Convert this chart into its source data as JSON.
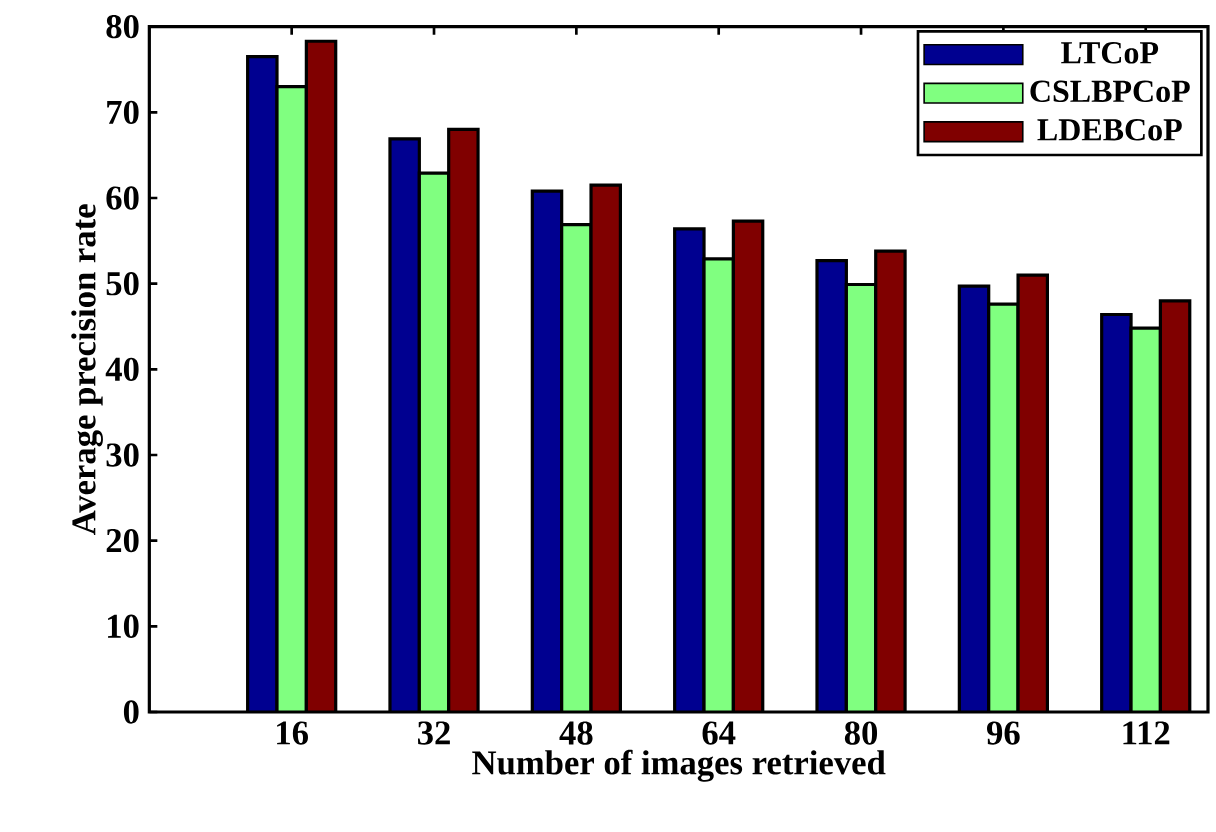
{
  "chart_data": {
    "type": "bar",
    "xlabel": "Number of images retrieved",
    "ylabel": "Average precision rate",
    "x": [
      16,
      32,
      48,
      64,
      80,
      96,
      112
    ],
    "xlim": [
      0,
      119
    ],
    "xticks": [
      16,
      32,
      48,
      64,
      80,
      96,
      112
    ],
    "ylim": [
      0,
      80
    ],
    "yticks": [
      0,
      10,
      20,
      30,
      40,
      50,
      60,
      70,
      80
    ],
    "legend": "top right",
    "series": [
      {
        "name": "LTCoP",
        "color": "#000090",
        "values": [
          76.5,
          66.9,
          60.8,
          56.4,
          52.7,
          49.7,
          46.4
        ]
      },
      {
        "name": "CSLBPCoP",
        "color": "#80ff80",
        "values": [
          73,
          62.9,
          56.9,
          52.9,
          49.9,
          47.6,
          44.8
        ]
      },
      {
        "name": "LDEBCoP",
        "color": "#800000",
        "values": [
          78.3,
          68,
          61.5,
          57.3,
          53.8,
          51,
          48
        ]
      }
    ]
  }
}
